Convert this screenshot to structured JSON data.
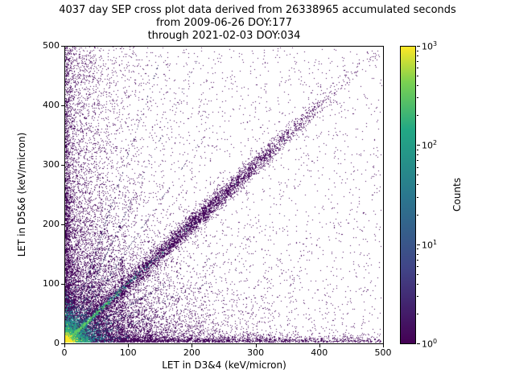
{
  "figure": {
    "title_line1": "4037 day SEP cross plot data derived from 26338965 accumulated seconds",
    "title_line2": "from 2009-06-26 DOY:177",
    "title_line3": "through 2021-02-03 DOY:034"
  },
  "chart_data": {
    "type": "heatmap",
    "title": "4037 day SEP cross plot data derived from 26338965 accumulated seconds",
    "subtitle": [
      "from 2009-06-26 DOY:177",
      "through 2021-02-03 DOY:034"
    ],
    "xlabel": "LET in D3&4 (keV/micron)",
    "ylabel": "LET in D5&6 (keV/micron)",
    "xlim": [
      0,
      500
    ],
    "ylim": [
      0,
      500
    ],
    "xticks": [
      0,
      100,
      200,
      300,
      400,
      500
    ],
    "yticks": [
      0,
      100,
      200,
      300,
      400,
      500
    ],
    "grid": false,
    "colorbar": {
      "label": "Counts",
      "scale": "log",
      "range": [
        1,
        1000
      ],
      "tick_exponents": [
        0,
        1,
        2,
        3
      ],
      "colormap": "viridis",
      "colormap_stops": [
        "#440154",
        "#414487",
        "#2a788e",
        "#22a884",
        "#7ad151",
        "#fde725"
      ]
    },
    "description": "2D histogram cross plot of LET in detectors D3&4 vs D5&6; dense yellow/green hotspot at the origin, a proton/ion diagonal band along y=x, pile-up bands along both axes, and a sparse purple background of single counts.",
    "render": {
      "seed": 20210203,
      "point_color_single_count": "#46085c",
      "features": [
        {
          "name": "uniform-background",
          "kind": "uniform",
          "count": 2200,
          "color": "#46085c"
        },
        {
          "name": "origin-falloff-cloud",
          "kind": "exp2d",
          "count": 9000,
          "sx": 75,
          "sy": 75,
          "color": "#46085c"
        },
        {
          "name": "left-region-scatter",
          "kind": "xexp_yuni",
          "count": 3000,
          "sx": 48,
          "color": "#46085c"
        },
        {
          "name": "bottom-pileup-band",
          "kind": "hband",
          "count": 3200,
          "sx": 170,
          "sy": 5,
          "mix": 0.25,
          "color": "#46085c"
        },
        {
          "name": "left-pileup-band",
          "kind": "vband",
          "count": 2000,
          "sx": 4,
          "sy": 190,
          "mix": 0.2,
          "color": "#46085c"
        },
        {
          "name": "main-diagonal-band",
          "kind": "diag",
          "count": 5500,
          "mix": 0.55,
          "mu": 215,
          "sd": 85,
          "scale": 160,
          "sigma": 6.5,
          "color": "#46085c"
        },
        {
          "name": "origin-rays",
          "kind": "rays",
          "count": 1300,
          "slopes": [
            0.3,
            0.45,
            0.62,
            1.6,
            2.3,
            3.2
          ],
          "scale": 55,
          "sigma": 1.3,
          "color": "#3e356b"
        },
        {
          "name": "vertical-streak-90",
          "kind": "vstreak",
          "count": 160,
          "x": 90,
          "y0": 20,
          "y1": 140,
          "sigma": 1.4,
          "color": "#46085c"
        },
        {
          "name": "origin-teal-glow",
          "kind": "exp2d",
          "count": 2800,
          "sx": 16,
          "sy": 16,
          "color": "#277f8e"
        },
        {
          "name": "teal-diagonal-streak",
          "kind": "diag",
          "count": 900,
          "mix": 0,
          "mu": 0,
          "sd": 1,
          "scale": 42,
          "sigma": 2.2,
          "color": "#26828e"
        },
        {
          "name": "origin-green-glow",
          "kind": "exp2d",
          "count": 1600,
          "sx": 8,
          "sy": 8,
          "color": "#35b779"
        },
        {
          "name": "green-diagonal-streak",
          "kind": "diag",
          "count": 500,
          "mix": 0,
          "mu": 0,
          "sd": 1,
          "scale": 26,
          "sigma": 1.3,
          "color": "#5ec962"
        },
        {
          "name": "yellow-core",
          "kind": "exp2d",
          "count": 900,
          "sx": 3.2,
          "sy": 3.2,
          "color": "#fde725"
        }
      ]
    }
  }
}
